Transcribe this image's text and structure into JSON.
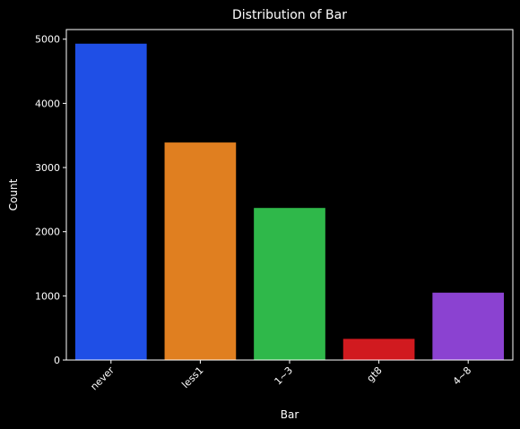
{
  "chart_data": {
    "type": "bar",
    "title": "Distribution of Bar",
    "xlabel": "Bar",
    "ylabel": "Count",
    "categories": [
      "never",
      "less1",
      "1~3",
      "gt8",
      "4~8"
    ],
    "values": [
      4930,
      3390,
      2370,
      330,
      1050
    ],
    "colors": [
      "#1f4fe6",
      "#e07f20",
      "#2fb84a",
      "#d11a1f",
      "#8b42d1"
    ],
    "ylim": [
      0,
      5150
    ],
    "yticks": [
      0,
      1000,
      2000,
      3000,
      4000,
      5000
    ],
    "ytick_labels": [
      "0",
      "1000",
      "2000",
      "3000",
      "4000",
      "5000"
    ],
    "grid": false,
    "background": "#000000",
    "text_color": "#ffffff"
  }
}
